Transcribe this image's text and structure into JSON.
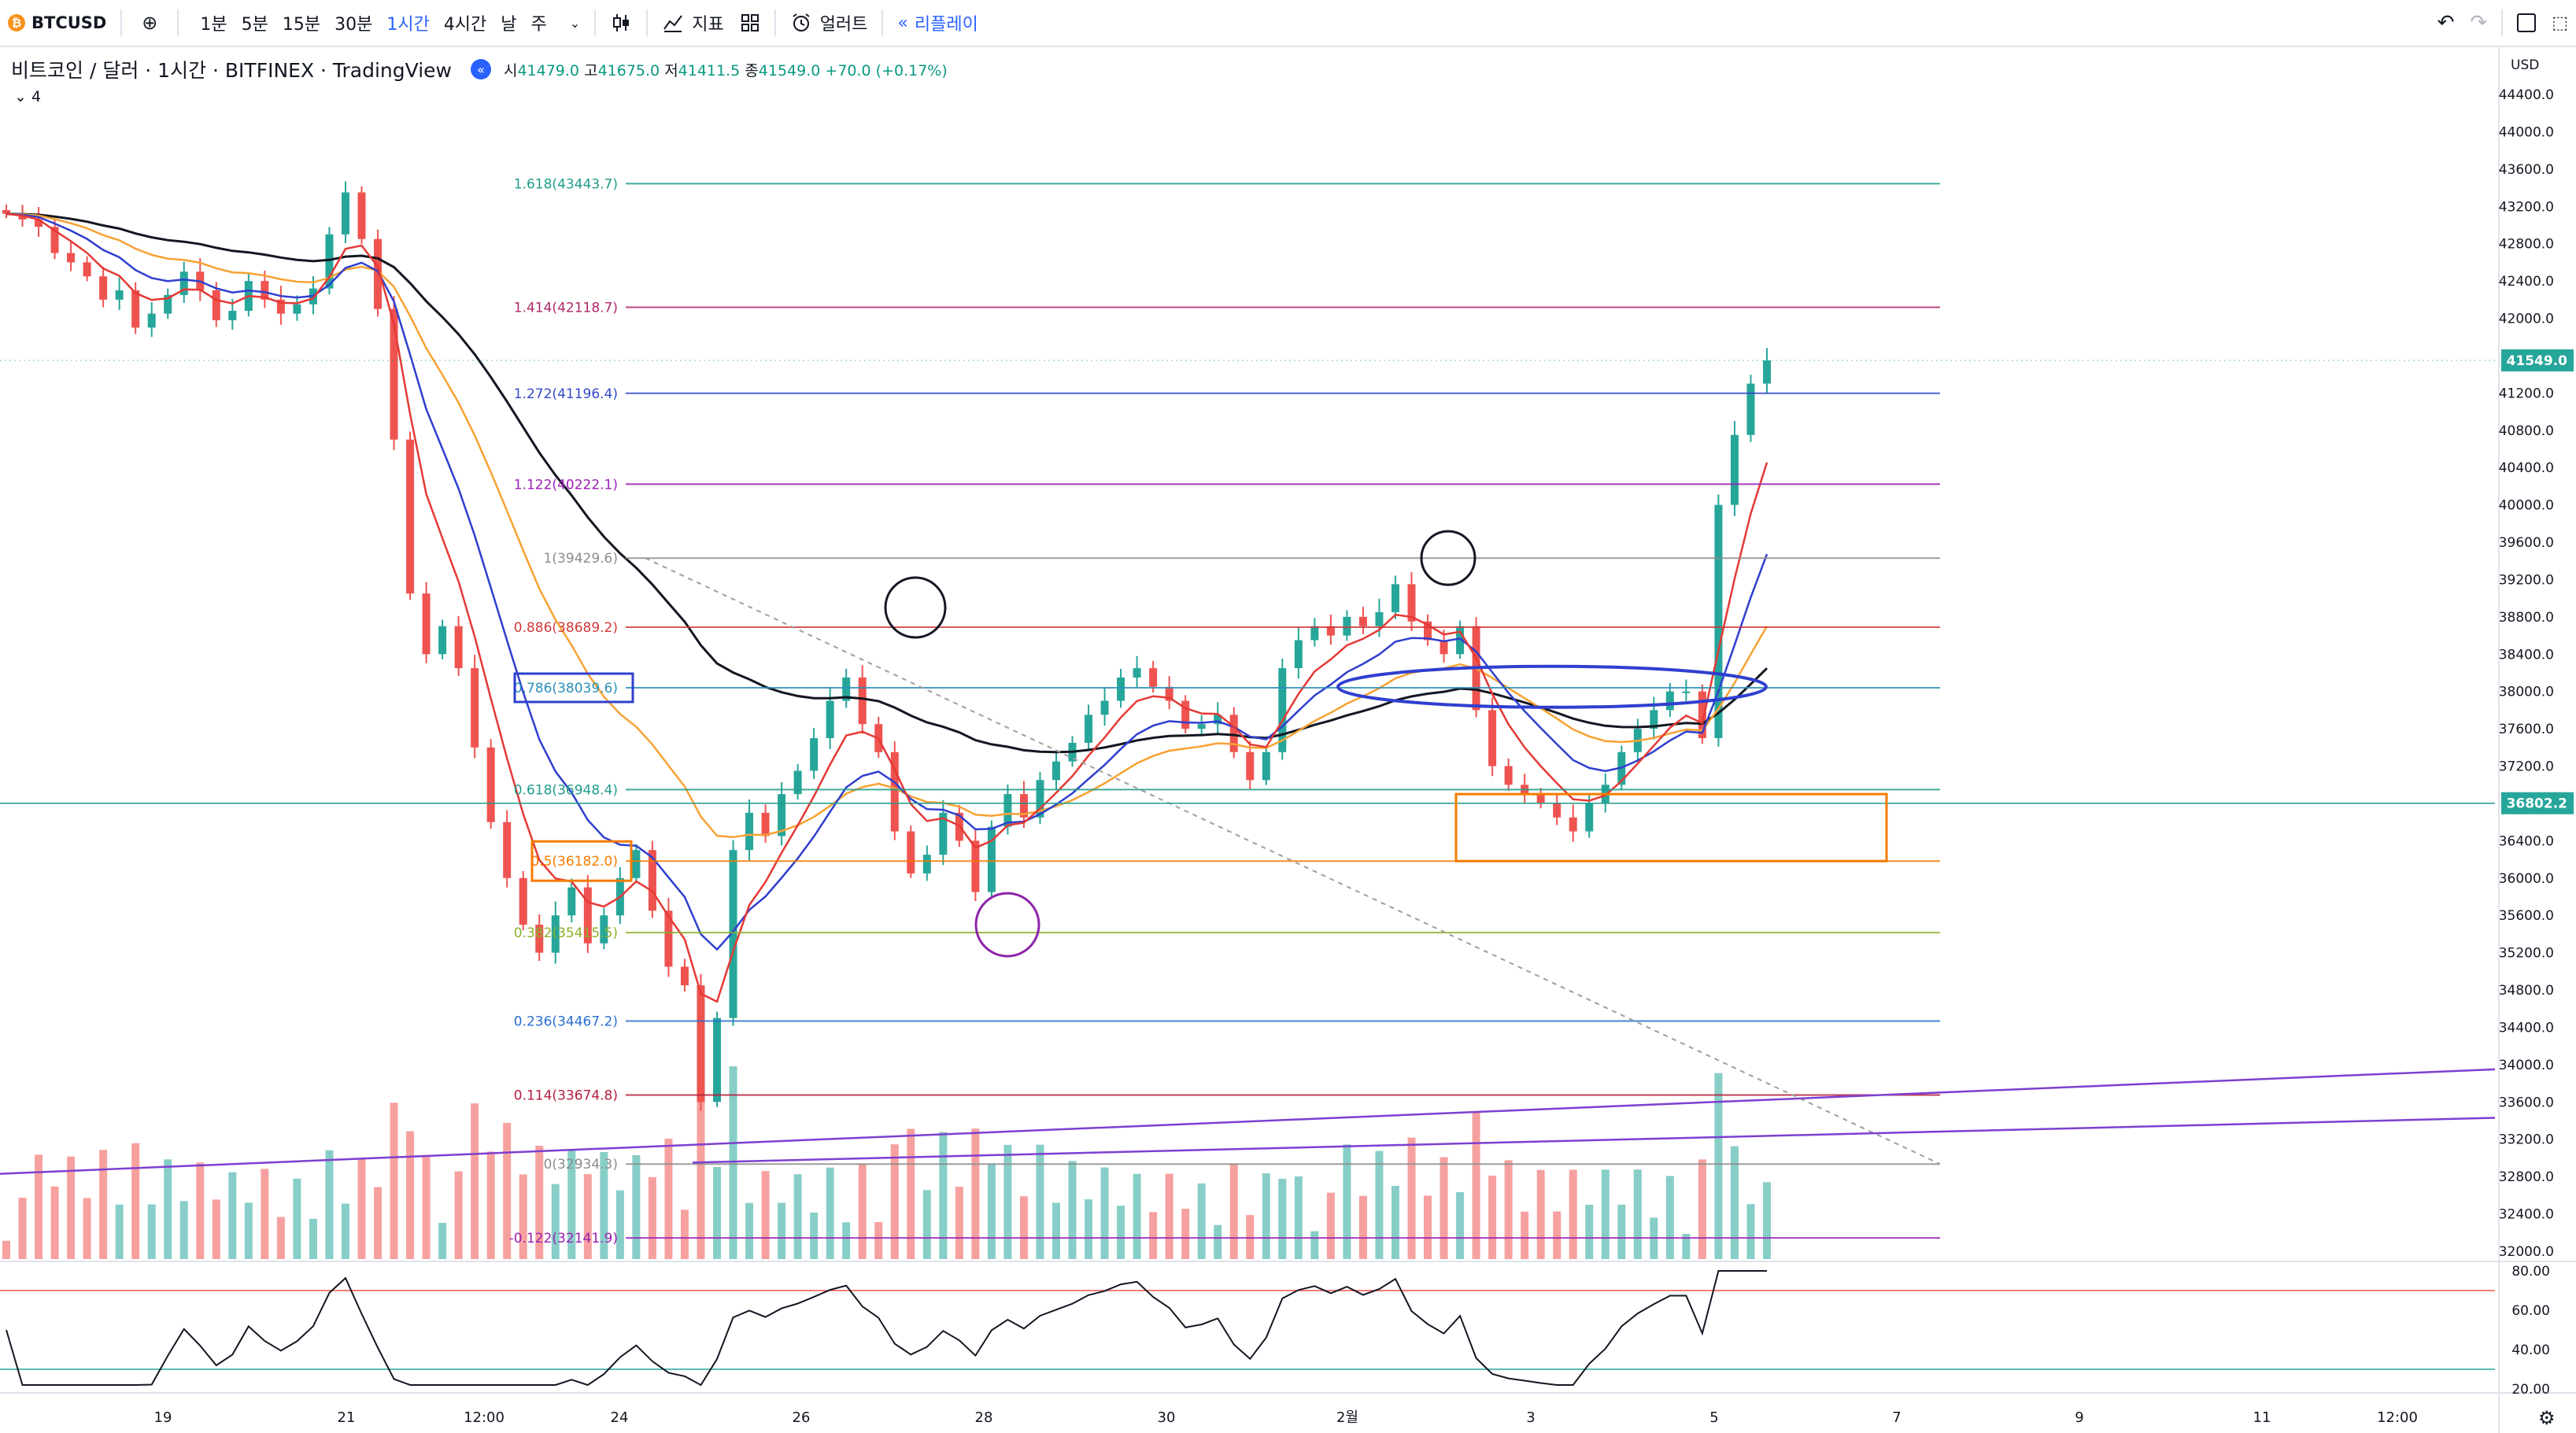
{
  "toolbar": {
    "symbol": "BTCUSD",
    "intervals": [
      "1분",
      "5분",
      "15분",
      "30분",
      "1시간",
      "4시간",
      "날",
      "주"
    ],
    "active_interval": "1시간",
    "indicators_label": "지표",
    "alert_label": "얼러트",
    "replay_label": "리플레이",
    "currency": "USD"
  },
  "legend": {
    "title": "비트코인 / 달러 · 1시간 · BITFINEX · TradingView",
    "o_label": "시",
    "o": "41479.0",
    "h_label": "고",
    "h": "41675.0",
    "l_label": "저",
    "l": "41411.5",
    "c_label": "종",
    "c": "41549.0",
    "change": "+70.0 (+0.17%)",
    "collapsed_count": "4"
  },
  "colors": {
    "up": "#26a69a",
    "down": "#ef5350",
    "ma_black": "#131722",
    "ma_orange": "#f7a233",
    "ma_blue": "#2f3fcf",
    "ma_red": "#e53935",
    "rsi": "#131722",
    "channel": "#7e3fd1",
    "accent": "#2962ff"
  },
  "chart_data": {
    "type": "candlestick",
    "symbol": "BTCUSD",
    "timeframe": "1h",
    "y_axis": {
      "min": 32000,
      "max": 44400,
      "step": 400
    },
    "x_ticks": [
      "19",
      "21",
      "12:00",
      "24",
      "26",
      "28",
      "30",
      "2월",
      "3",
      "5",
      "7",
      "9",
      "11",
      "12:00"
    ],
    "last_price": "41549.0",
    "marked_price": "36802.2",
    "fib_levels": [
      {
        "label": "1.618(43443.7)",
        "price": 43443.7,
        "color": "#1e9c8a"
      },
      {
        "label": "1.414(42118.7)",
        "price": 42118.7,
        "color": "#b0276b"
      },
      {
        "label": "1.272(41196.4)",
        "price": 41196.4,
        "color": "#3349c9"
      },
      {
        "label": "1.122(40222.1)",
        "price": 40222.1,
        "color": "#9b1fb4"
      },
      {
        "label": "1(39429.6)",
        "price": 39429.6,
        "color": "#8c8c8c"
      },
      {
        "label": "0.886(38689.2)",
        "price": 38689.2,
        "color": "#d03a3a"
      },
      {
        "label": "0.786(38039.6)",
        "price": 38039.6,
        "color": "#2a8fb8"
      },
      {
        "label": "0.618(36948.4)",
        "price": 36948.4,
        "color": "#1e9c8a"
      },
      {
        "label": "0.5(36182.0)",
        "price": 36182.0,
        "color": "#f57c00"
      },
      {
        "label": "0.382(35415.5)",
        "price": 35415.5,
        "color": "#8bb02a"
      },
      {
        "label": "0.236(34467.2)",
        "price": 34467.2,
        "color": "#2a6fd0"
      },
      {
        "label": "0.114(33674.8)",
        "price": 33674.8,
        "color": "#b71c3c"
      },
      {
        "label": "0(32934.3)",
        "price": 32934.3,
        "color": "#8c8c8c"
      },
      {
        "label": "-0.122(32141.9)",
        "price": 32141.9,
        "color": "#9b1fb4"
      }
    ],
    "price_axis_labels": [
      "44400.0",
      "44000.0",
      "43600.0",
      "43200.0",
      "42800.0",
      "42400.0",
      "42000.0",
      "41549.0",
      "41200.0",
      "40800.0",
      "40400.0",
      "40000.0",
      "39600.0",
      "39200.0",
      "38800.0",
      "38400.0",
      "38000.0",
      "37600.0",
      "37200.0",
      "36802.2",
      "36400.0",
      "36000.0",
      "35600.0",
      "35200.0",
      "34800.0",
      "34400.0",
      "34000.0",
      "33600.0",
      "33200.0",
      "32800.0",
      "32400.0",
      "32000.0"
    ],
    "rsi_axis": {
      "min": 20,
      "max": 80,
      "labels": [
        "80.00",
        "60.00",
        "40.00",
        "20.00"
      ],
      "upper": 70,
      "lower": 30
    },
    "closes": [
      43120,
      43060,
      42980,
      42700,
      42600,
      42450,
      42200,
      42300,
      41900,
      42050,
      42250,
      42500,
      42300,
      41980,
      42080,
      42400,
      42200,
      42050,
      42150,
      42320,
      42900,
      43350,
      42850,
      42100,
      40700,
      39050,
      38400,
      38700,
      38250,
      37400,
      36600,
      36000,
      35500,
      35200,
      35600,
      35900,
      35300,
      35600,
      36000,
      36300,
      35650,
      35050,
      34850,
      33600,
      34500,
      36300,
      36700,
      36450,
      36900,
      37150,
      37500,
      37900,
      38150,
      37650,
      37350,
      36500,
      36050,
      36250,
      36700,
      36400,
      35850,
      36550,
      36900,
      36650,
      37050,
      37250,
      37450,
      37750,
      37900,
      38150,
      38250,
      38050,
      37900,
      37600,
      37650,
      37750,
      37350,
      37050,
      37350,
      38250,
      38550,
      38700,
      38600,
      38800,
      38700,
      38850,
      39150,
      38750,
      38550,
      38400,
      38700,
      37800,
      37200,
      37000,
      36900,
      36800,
      36650,
      36500,
      36800,
      37000,
      37350,
      37600,
      37800,
      38000,
      38000,
      37500,
      40000,
      40750,
      41300,
      41549
    ],
    "annotations": [
      "circle-top-1",
      "circle-top-2",
      "circle-bottom",
      "box-0786",
      "box-05",
      "box-support-zone",
      "ellipse-ma-cross"
    ]
  }
}
